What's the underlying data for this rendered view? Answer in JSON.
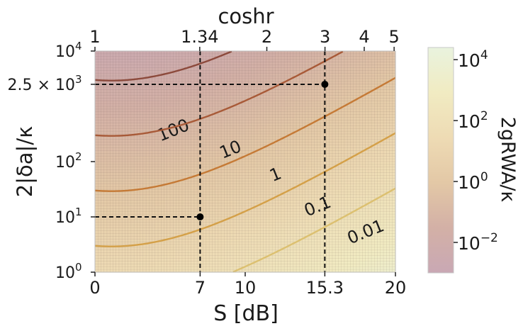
{
  "chart_data": {
    "type": "heatmap",
    "title": "",
    "xlabel": "S [dB]",
    "ylabel": "2|δa|/κ",
    "top_axis_label": "coshr",
    "colorbar_label": "2gRWA/κ",
    "xlim": [
      0,
      20
    ],
    "ylim_log10": [
      0,
      4
    ],
    "x_ticks": [
      {
        "value": 0,
        "label": "0"
      },
      {
        "value": 7,
        "label": "7"
      },
      {
        "value": 10,
        "label": "10"
      },
      {
        "value": 15.3,
        "label": "15.3"
      },
      {
        "value": 20,
        "label": "20"
      }
    ],
    "y_ticks": [
      {
        "value": 1,
        "label": "10",
        "exp": "0"
      },
      {
        "value": 10,
        "label": "10",
        "exp": "1"
      },
      {
        "value": 100,
        "label": "10",
        "exp": "2"
      },
      {
        "value": 2500,
        "label": "2.5 × 10",
        "exp": "3"
      },
      {
        "value": 10000,
        "label": "10",
        "exp": "4"
      }
    ],
    "top_ticks": [
      {
        "value": 1,
        "label": "1"
      },
      {
        "value": 1.34,
        "label": "1.34"
      },
      {
        "value": 2,
        "label": "2"
      },
      {
        "value": 3,
        "label": "3"
      },
      {
        "value": 4,
        "label": "4"
      },
      {
        "value": 5,
        "label": "5"
      }
    ],
    "colorbar_ticks": [
      {
        "value": 0.01,
        "label": "10",
        "exp": "−2"
      },
      {
        "value": 1,
        "label": "10",
        "exp": "0"
      },
      {
        "value": 100,
        "label": "10",
        "exp": "2"
      },
      {
        "value": 10000,
        "label": "10",
        "exp": "4"
      }
    ],
    "colorbar_range_log10": [
      -3,
      4.4
    ],
    "contours": [
      {
        "level": 100,
        "label": "100",
        "label_at": [
          5.2,
          380
        ],
        "color": "#dcc070"
      },
      {
        "level": 10,
        "label": "10",
        "label_at": [
          9.0,
          170
        ],
        "color": "#d4a048"
      },
      {
        "level": 1,
        "label": "1",
        "label_at": [
          12.0,
          60
        ],
        "color": "#c57a36"
      },
      {
        "level": 0.1,
        "label": "0.1",
        "label_at": [
          14.8,
          16
        ],
        "color": "#a85a38"
      },
      {
        "level": 0.01,
        "label": "0.01",
        "label_at": [
          18.0,
          5.5
        ],
        "color": "#8c4a3c"
      }
    ],
    "markers": [
      {
        "x": 7,
        "y": 10
      },
      {
        "x": 15.3,
        "y": 2500
      }
    ],
    "grid": true,
    "colormap": [
      "#c9a8b4",
      "#d3b0a6",
      "#e3c8a6",
      "#eedbb4",
      "#f1ebc2",
      "#e9f3de"
    ]
  }
}
